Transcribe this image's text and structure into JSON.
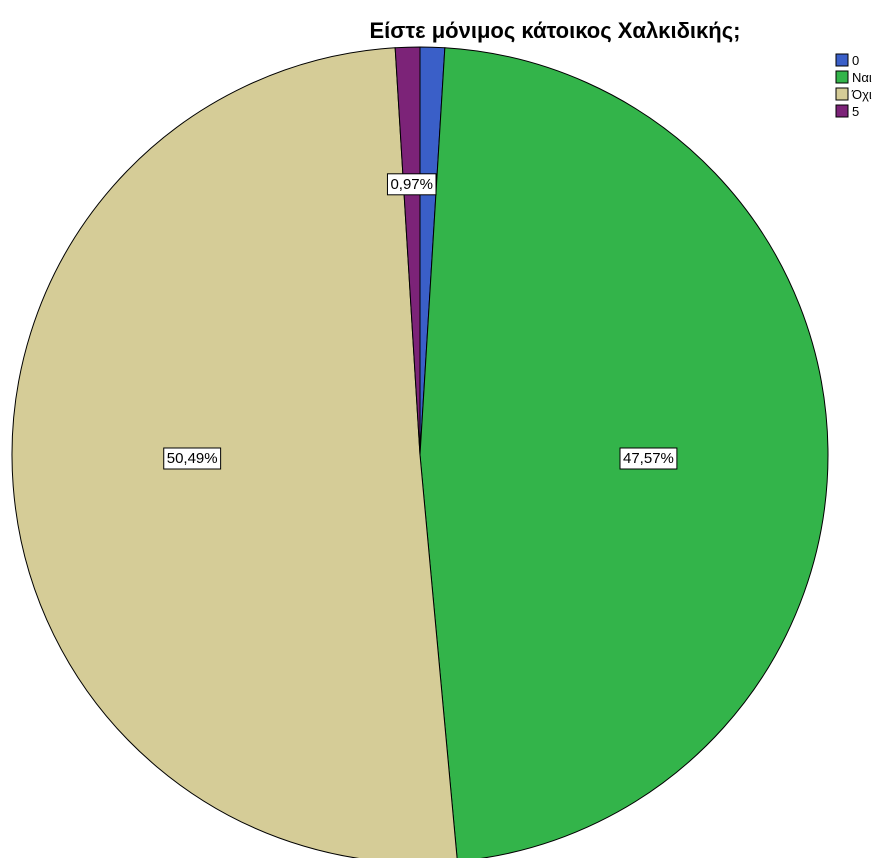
{
  "chart_data": {
    "type": "pie",
    "title": "Είστε μόνιμος κάτοικος Χαλκιδικής;",
    "legend_position": "top-right",
    "slices": [
      {
        "label": "0",
        "value": 0.97,
        "color": "#3a5fc8",
        "data_label": ""
      },
      {
        "label": "Ναι",
        "value": 47.57,
        "color": "#33b44a",
        "data_label": "47,57%"
      },
      {
        "label": "Όχι",
        "value": 50.49,
        "color": "#d5cc97",
        "data_label": "50,49%"
      },
      {
        "label": "5",
        "value": 0.97,
        "color": "#7c2378",
        "data_label": "0,97%"
      }
    ]
  }
}
